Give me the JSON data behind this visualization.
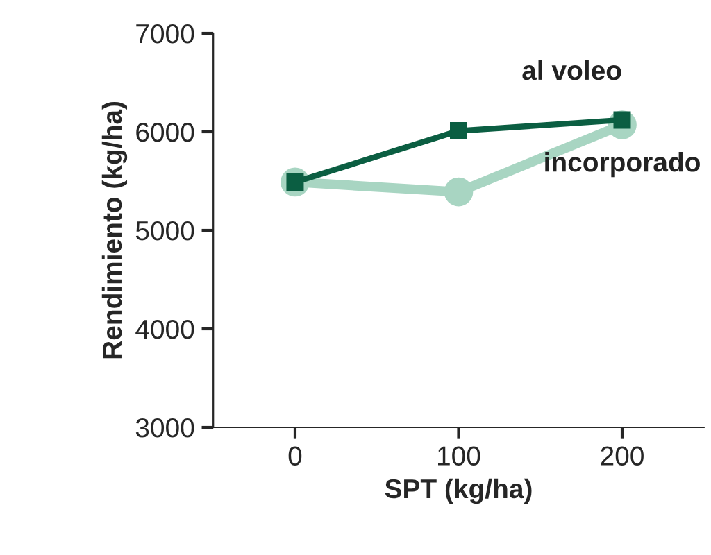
{
  "chart_data": {
    "type": "line",
    "xlabel": "SPT (kg/ha)",
    "ylabel": "Rendimiento (kg/ha)",
    "x": [
      0,
      100,
      200
    ],
    "xlim": [
      -50,
      250
    ],
    "xticks": [
      0,
      100,
      200
    ],
    "ylim": [
      3000,
      7000
    ],
    "yticks": [
      3000,
      4000,
      5000,
      6000,
      7000
    ],
    "series": [
      {
        "name": "al voleo",
        "color": "#0b5e42",
        "marker": "square",
        "values": [
          5490,
          6010,
          6120
        ]
      },
      {
        "name": "incorporado",
        "color": "#a8d5c2",
        "marker": "circle",
        "values": [
          5490,
          5390,
          6070
        ]
      }
    ],
    "grid": false,
    "legend": false
  }
}
